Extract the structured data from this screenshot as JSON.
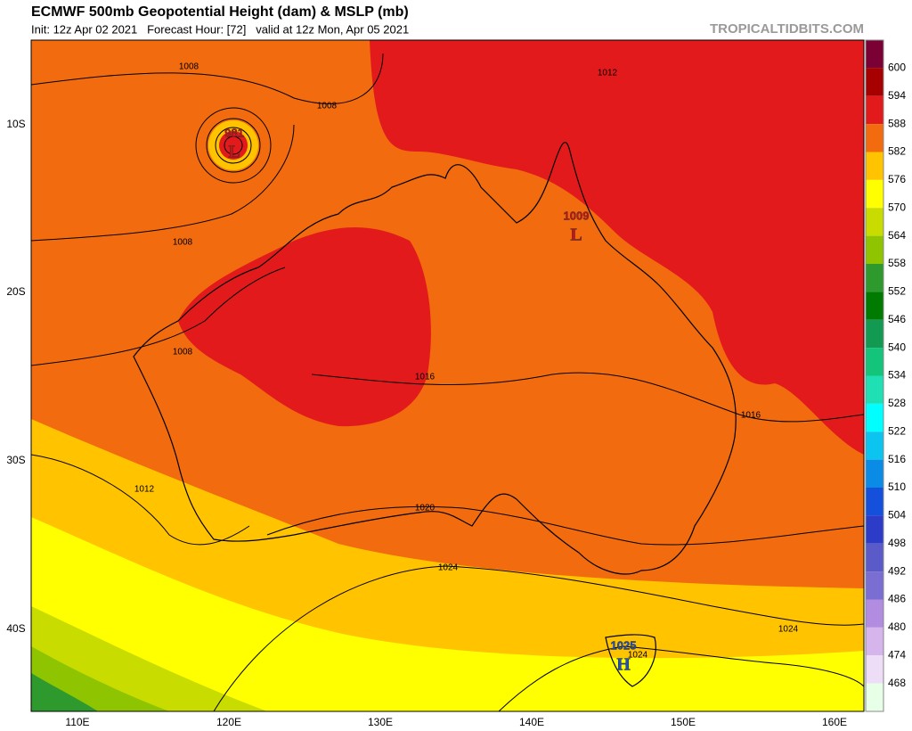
{
  "header": {
    "title": "ECMWF 500mb Geopotential Height (dam) & MSLP (mb)",
    "subtitle": "Init: 12z Apr 02 2021   Forecast Hour: [72]   valid at 12z Mon, Apr 05 2021",
    "watermark": "TROPICALTIDBITS.COM"
  },
  "map": {
    "lat_labels": [
      "10S",
      "20S",
      "30S",
      "40S"
    ],
    "lon_labels": [
      "110E",
      "120E",
      "130E",
      "140E",
      "150E",
      "160E"
    ],
    "isobar_labels": [
      "1008",
      "1008",
      "1008",
      "1008",
      "1012",
      "1016",
      "1016",
      "1012",
      "1020",
      "1024",
      "1024",
      "1024"
    ],
    "pressure_centers": [
      {
        "value": "981",
        "symbol": "L"
      },
      {
        "value": "1009",
        "symbol": "L"
      },
      {
        "value": "1025",
        "symbol": "H"
      }
    ]
  },
  "colorbar": {
    "labels": [
      "600",
      "594",
      "588",
      "582",
      "576",
      "570",
      "564",
      "558",
      "552",
      "546",
      "540",
      "534",
      "528",
      "522",
      "516",
      "510",
      "504",
      "498",
      "492",
      "486",
      "480",
      "474",
      "468"
    ],
    "colors": [
      "#7b0033",
      "#a60000",
      "#e31a1c",
      "#f26b0f",
      "#ffc300",
      "#ffff00",
      "#c8dc00",
      "#8fc400",
      "#2e9a2e",
      "#007a00",
      "#129a52",
      "#14c47a",
      "#1ee0b4",
      "#00ffff",
      "#0bc4f0",
      "#0a8ce6",
      "#1450dc",
      "#2d3cc8",
      "#5a5ac8",
      "#7b6ed2",
      "#b28ce0",
      "#d6b4ec",
      "#eeddf6",
      "#e6ffe6"
    ]
  }
}
